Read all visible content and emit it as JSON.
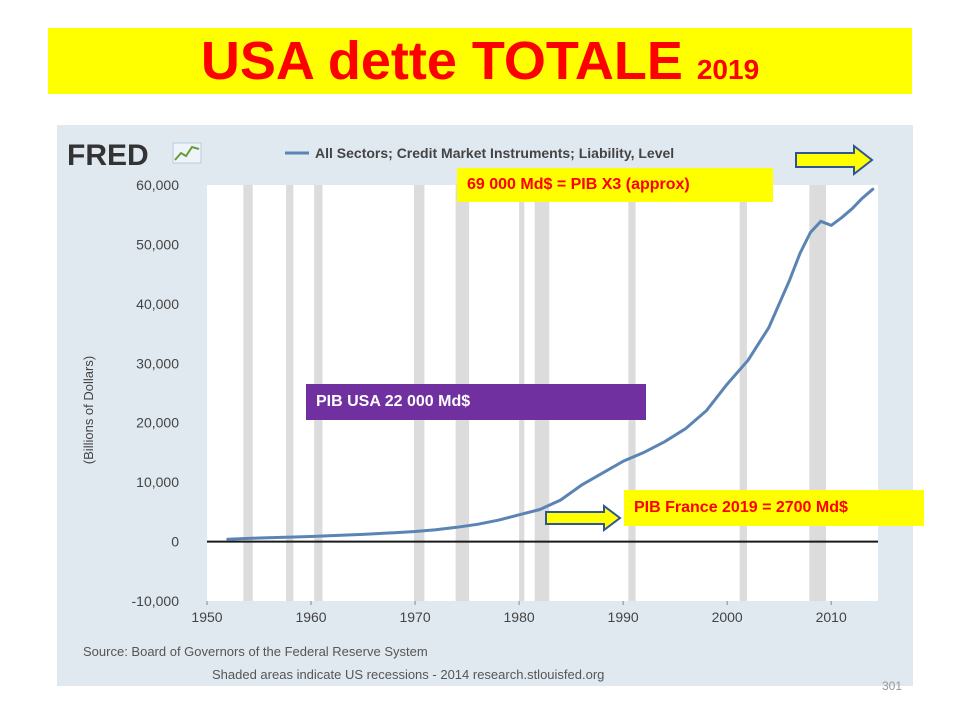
{
  "slide": {
    "title": "USA dette TOTALE",
    "year": "2019",
    "page_number": "301"
  },
  "annotations": {
    "top_callout": "69 000 Md$ = PIB X3 (approx)",
    "usa_gdp": "PIB USA  22 000 Md$",
    "france_gdp": "PIB France 2019 = 2700 Md$"
  },
  "colors": {
    "title": "#ff0000",
    "highlight": "#ffff00",
    "purple_box": "#7030a0",
    "series_line": "#5b84b4",
    "plot_background": "#ffffff",
    "frame_background": "#e1e9f0",
    "recession_shade": "#dcdcdc"
  },
  "chart_data": {
    "type": "line",
    "brand": "FRED",
    "legend": "All Sectors; Credit Market Instruments; Liability, Level",
    "legend_placement": "top",
    "ylabel": "(Billions of Dollars)",
    "xlabel": "",
    "xlim": [
      1950,
      2014.5
    ],
    "ylim": [
      -10000,
      60000
    ],
    "x_ticks": [
      1950,
      1960,
      1970,
      1980,
      1990,
      2000,
      2010
    ],
    "y_ticks": [
      -10000,
      0,
      10000,
      20000,
      30000,
      40000,
      50000,
      60000
    ],
    "y_tick_labels": [
      "-10,000",
      "0",
      "10,000",
      "20,000",
      "30,000",
      "40,000",
      "50,000",
      "60,000"
    ],
    "grid": false,
    "source": "Source: Board of Governors of the Federal Reserve System",
    "footnote": "Shaded areas indicate US recessions - 2014 research.stlouisfed.org",
    "recessions": [
      [
        1953.5,
        1954.4
      ],
      [
        1957.6,
        1958.3
      ],
      [
        1960.3,
        1961.1
      ],
      [
        1969.9,
        1970.9
      ],
      [
        1973.9,
        1975.2
      ],
      [
        1980.0,
        1980.5
      ],
      [
        1981.5,
        1982.9
      ],
      [
        1990.5,
        1991.2
      ],
      [
        2001.2,
        2001.9
      ],
      [
        2007.9,
        2009.5
      ]
    ],
    "series": [
      {
        "name": "All Sectors; Credit Market Instruments; Liability, Level",
        "x": [
          1952,
          1955,
          1958,
          1960,
          1962,
          1965,
          1968,
          1970,
          1972,
          1974,
          1976,
          1978,
          1980,
          1982,
          1984,
          1986,
          1988,
          1990,
          1992,
          1994,
          1996,
          1998,
          2000,
          2002,
          2004,
          2006,
          2007,
          2008,
          2009,
          2010,
          2011,
          2012,
          2013,
          2014
        ],
        "y": [
          400,
          600,
          750,
          850,
          1000,
          1200,
          1500,
          1700,
          2000,
          2400,
          2900,
          3600,
          4500,
          5400,
          7000,
          9500,
          11500,
          13500,
          15000,
          16800,
          19000,
          22000,
          26500,
          30500,
          36000,
          44000,
          48500,
          52000,
          53900,
          53200,
          54500,
          56000,
          57800,
          59300
        ]
      }
    ]
  }
}
